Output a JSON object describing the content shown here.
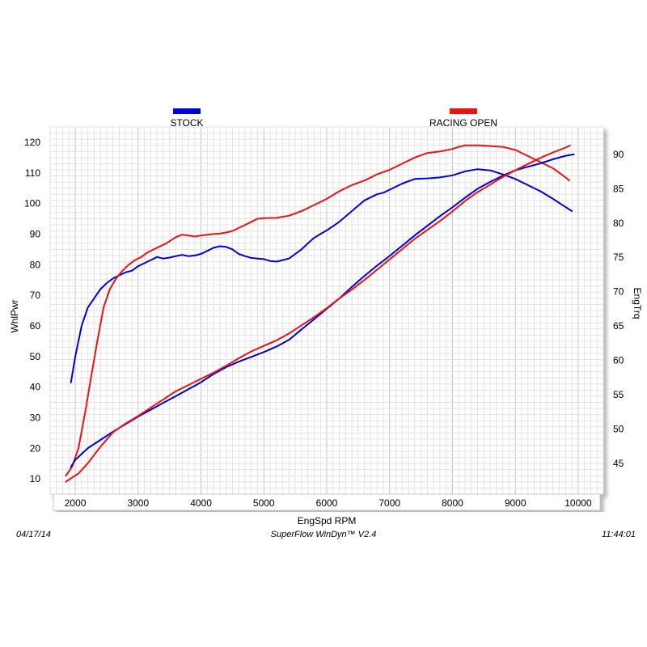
{
  "chart_data": {
    "type": "line",
    "legend": [
      {
        "name": "STOCK",
        "color": "#0000dd"
      },
      {
        "name": "RACING OPEN",
        "color": "#ee1111"
      }
    ],
    "xlabel": "EngSpd  RPM",
    "ylabel_left": "WhlPwr",
    "ylabel_right": "EngTrq",
    "xlim": [
      1600,
      10400
    ],
    "ylim_left": [
      5,
      125
    ],
    "ylim_right": [
      40.5,
      94
    ],
    "x_ticks": [
      2000,
      3000,
      4000,
      5000,
      6000,
      7000,
      8000,
      9000,
      10000
    ],
    "y_left_ticks": [
      10,
      20,
      30,
      40,
      50,
      60,
      70,
      80,
      90,
      100,
      110,
      120
    ],
    "y_right_ticks": [
      45,
      50,
      55,
      60,
      65,
      70,
      75,
      80,
      85,
      90
    ],
    "series": [
      {
        "name": "STOCK",
        "metric": "WhlPwr",
        "axis": "left",
        "color": "#0000dd",
        "x": [
          1930,
          2000,
          2100,
          2200,
          2300,
          2400,
          2500,
          2600,
          2700,
          2800,
          2900,
          3000,
          3100,
          3200,
          3300,
          3400,
          3500,
          3600,
          3700,
          3800,
          3900,
          4000,
          4100,
          4200,
          4300,
          4400,
          4500,
          4600,
          4700,
          4800,
          4900,
          5000,
          5100,
          5200,
          5300,
          5400,
          5500,
          5600,
          5700,
          5800,
          5900,
          6000,
          6200,
          6400,
          6600,
          6800,
          6900,
          7000,
          7200,
          7400,
          7600,
          7800,
          8000,
          8200,
          8400,
          8600,
          8800,
          9000,
          9200,
          9400,
          9600,
          9800,
          9900
        ],
        "y": [
          41.5,
          50,
          60,
          66,
          69,
          72,
          74,
          75.5,
          76.5,
          77.5,
          78,
          79.5,
          80.5,
          81.5,
          82.5,
          82,
          82.3,
          82.8,
          83.2,
          82.8,
          83,
          83.5,
          84.5,
          85.5,
          86,
          85.8,
          85,
          83.5,
          82.8,
          82.2,
          82,
          81.8,
          81.2,
          81,
          81.5,
          82,
          83.5,
          85,
          87,
          88.8,
          90,
          91.2,
          94,
          97.5,
          101,
          103,
          103.5,
          104.5,
          106.5,
          108,
          108.2,
          108.5,
          109.2,
          110.5,
          111.2,
          110.8,
          109.5,
          108,
          106,
          104,
          101.5,
          98.8,
          97.5
        ]
      },
      {
        "name": "RACING OPEN",
        "metric": "WhlPwr",
        "axis": "left",
        "color": "#ee1111",
        "x": [
          1850,
          1950,
          2050,
          2150,
          2250,
          2350,
          2450,
          2550,
          2650,
          2750,
          2850,
          2950,
          3050,
          3150,
          3300,
          3450,
          3600,
          3700,
          3800,
          3900,
          4000,
          4100,
          4200,
          4300,
          4400,
          4500,
          4600,
          4700,
          4800,
          4900,
          5000,
          5200,
          5400,
          5600,
          5800,
          6000,
          6200,
          6400,
          6600,
          6800,
          7000,
          7200,
          7400,
          7600,
          7800,
          8000,
          8100,
          8200,
          8400,
          8600,
          8800,
          9000,
          9200,
          9400,
          9600,
          9800,
          9860
        ],
        "y": [
          11,
          14,
          20,
          31,
          43,
          55,
          66,
          72,
          75.5,
          78,
          80,
          81.5,
          82.5,
          84,
          85.5,
          87,
          89,
          89.8,
          89.5,
          89.2,
          89.5,
          89.8,
          90,
          90.2,
          90.5,
          91,
          92,
          93,
          94,
          95,
          95.2,
          95.3,
          96,
          97.5,
          99.5,
          101.5,
          104,
          106,
          107.5,
          109.5,
          111,
          113,
          115,
          116.5,
          117,
          117.8,
          118.5,
          119,
          119,
          118.8,
          118.5,
          117.5,
          115.5,
          113.5,
          111.5,
          108.5,
          107.5
        ]
      },
      {
        "name": "STOCK",
        "metric": "EngTrq",
        "axis": "right",
        "color": "#0000dd",
        "x": [
          1930,
          2000,
          2200,
          2400,
          2600,
          2800,
          3000,
          3200,
          3400,
          3600,
          3800,
          4000,
          4200,
          4400,
          4600,
          4800,
          5000,
          5200,
          5400,
          5600,
          5800,
          6000,
          6200,
          6400,
          6600,
          6800,
          7000,
          7200,
          7400,
          7600,
          7800,
          8000,
          8200,
          8400,
          8600,
          8800,
          9000,
          9200,
          9400,
          9600,
          9800,
          9930
        ],
        "y": [
          44.5,
          45.5,
          47.2,
          48.4,
          49.6,
          50.7,
          51.8,
          52.8,
          53.8,
          54.8,
          55.8,
          56.8,
          58,
          59,
          59.8,
          60.5,
          61.2,
          62,
          63,
          64.5,
          66,
          67.5,
          69,
          70.7,
          72.3,
          73.8,
          75.2,
          76.7,
          78.2,
          79.6,
          81,
          82.3,
          83.7,
          85,
          86,
          86.9,
          87.7,
          88.2,
          88.7,
          89.3,
          89.8,
          90
        ]
      },
      {
        "name": "RACING OPEN",
        "metric": "EngTrq",
        "axis": "right",
        "color": "#ee1111",
        "x": [
          1850,
          1950,
          2050,
          2200,
          2400,
          2600,
          2800,
          3000,
          3200,
          3400,
          3600,
          3800,
          4000,
          4200,
          4400,
          4600,
          4800,
          5000,
          5200,
          5400,
          5600,
          5800,
          6000,
          6200,
          6400,
          6600,
          6800,
          7000,
          7200,
          7400,
          7600,
          7800,
          8000,
          8200,
          8400,
          8600,
          8800,
          9000,
          9200,
          9400,
          9600,
          9800,
          9870
        ],
        "y": [
          42.3,
          42.9,
          43.5,
          45,
          47.4,
          49.5,
          50.8,
          51.9,
          53.1,
          54.3,
          55.5,
          56.4,
          57.3,
          58.2,
          59.2,
          60.3,
          61.3,
          62.1,
          62.9,
          63.9,
          65.1,
          66.3,
          67.6,
          69,
          70.3,
          71.7,
          73.2,
          74.7,
          76.2,
          77.7,
          79,
          80.3,
          81.7,
          83.2,
          84.5,
          85.6,
          86.7,
          87.7,
          88.6,
          89.5,
          90.3,
          91,
          91.3
        ]
      }
    ]
  },
  "footer": {
    "date": "04/17/14",
    "software": "SuperFlow WinDyn™  V2.4",
    "time": "11:44:01"
  }
}
